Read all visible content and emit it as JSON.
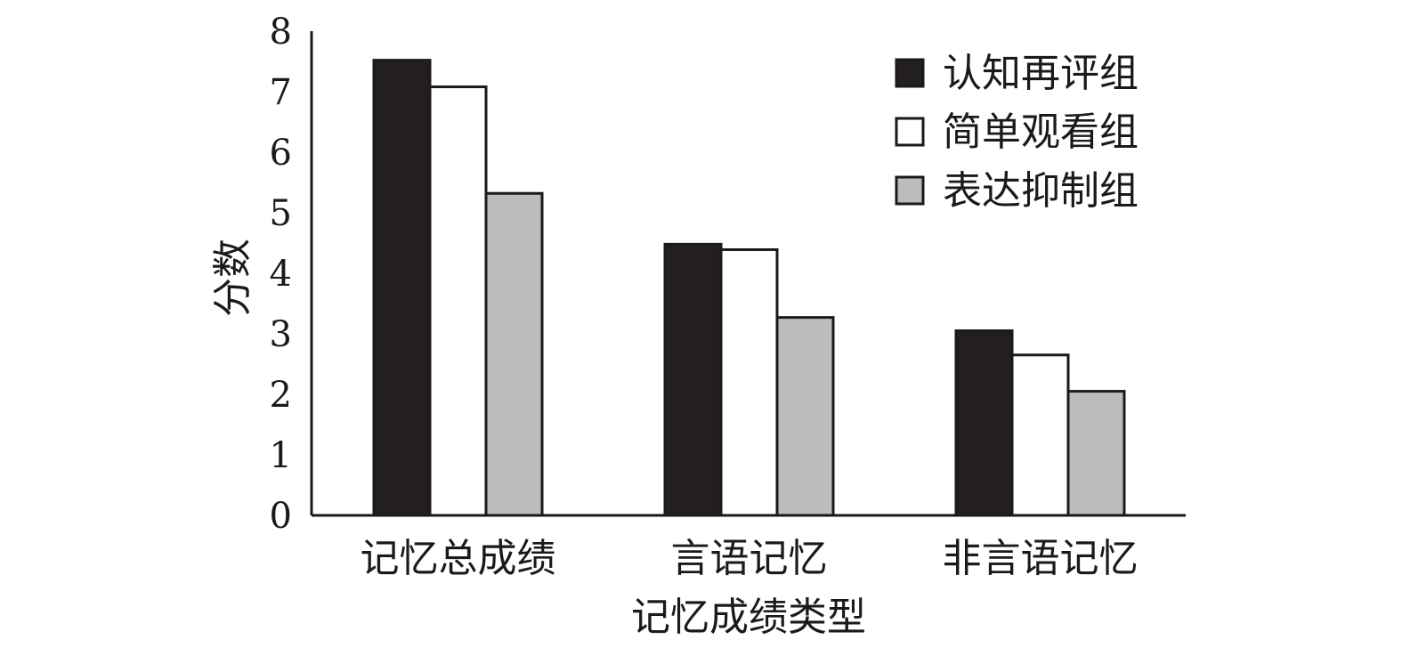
{
  "chart_data": {
    "type": "bar",
    "title": "",
    "xlabel": "记忆成绩类型",
    "ylabel": "分数",
    "ylim": [
      0,
      8
    ],
    "yticks": [
      "0",
      "1",
      "2",
      "3",
      "4",
      "5",
      "6",
      "7",
      "8"
    ],
    "categories": [
      "记忆总成绩",
      "言语记忆",
      "非言语记忆"
    ],
    "series": [
      {
        "name": "认知再评组",
        "color": "#231f20",
        "values": [
          7.52,
          4.48,
          3.05
        ]
      },
      {
        "name": "简单观看组",
        "color": "#ffffff",
        "values": [
          7.08,
          4.39,
          2.65
        ]
      },
      {
        "name": "表达抑制组",
        "color": "#bcbcbc",
        "values": [
          5.32,
          3.27,
          2.05
        ]
      }
    ],
    "grid": false,
    "legend_position": "top-right"
  }
}
